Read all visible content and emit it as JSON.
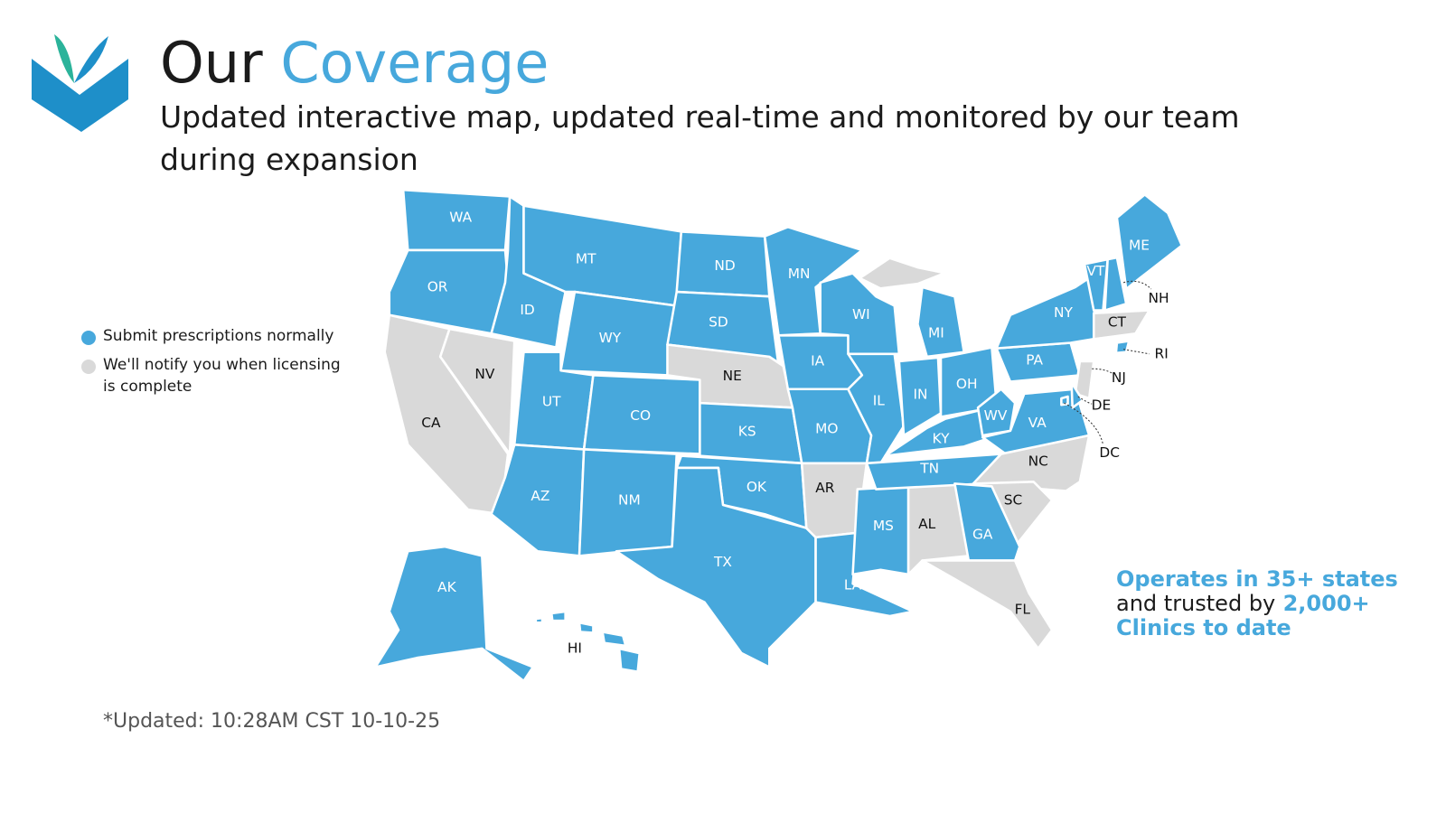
{
  "header": {
    "title_first": "Our",
    "title_second": "Coverage",
    "subtitle": "Updated interactive map, updated real-time and monitored by our team during expansion"
  },
  "legend": [
    {
      "label": "Submit prescriptions normally",
      "color": "#47a8dc"
    },
    {
      "label": "We'll notify you when licensing is complete",
      "color": "#d9d9d9"
    }
  ],
  "states": [
    {
      "label": "WA",
      "legend": 0
    },
    {
      "label": "OR",
      "legend": 0
    },
    {
      "label": "CA",
      "legend": 1
    },
    {
      "label": "NV",
      "legend": 1
    },
    {
      "label": "ID",
      "legend": 0
    },
    {
      "label": "MT",
      "legend": 0
    },
    {
      "label": "WY",
      "legend": 0
    },
    {
      "label": "UT",
      "legend": 0
    },
    {
      "label": "CO",
      "legend": 0
    },
    {
      "label": "AZ",
      "legend": 0
    },
    {
      "label": "NM",
      "legend": 0
    },
    {
      "label": "ND",
      "legend": 0
    },
    {
      "label": "SD",
      "legend": 0
    },
    {
      "label": "NE",
      "legend": 1
    },
    {
      "label": "KS",
      "legend": 0
    },
    {
      "label": "OK",
      "legend": 0
    },
    {
      "label": "TX",
      "legend": 0
    },
    {
      "label": "MN",
      "legend": 0
    },
    {
      "label": "IA",
      "legend": 0
    },
    {
      "label": "MO",
      "legend": 0
    },
    {
      "label": "AR",
      "legend": 1
    },
    {
      "label": "LA",
      "legend": 0
    },
    {
      "label": "WI",
      "legend": 0
    },
    {
      "label": "IL",
      "legend": 0
    },
    {
      "label": "MS",
      "legend": 0
    },
    {
      "label": "AL",
      "legend": 1
    },
    {
      "label": "TN",
      "legend": 0
    },
    {
      "label": "KY",
      "legend": 0
    },
    {
      "label": "IN",
      "legend": 0
    },
    {
      "label": "OH",
      "legend": 0
    },
    {
      "label": "MI",
      "legend": 0
    },
    {
      "label": "WV",
      "legend": 0
    },
    {
      "label": "VA",
      "legend": 0
    },
    {
      "label": "NC",
      "legend": 1
    },
    {
      "label": "SC",
      "legend": 1
    },
    {
      "label": "GA",
      "legend": 0
    },
    {
      "label": "FL",
      "legend": 1
    },
    {
      "label": "PA",
      "legend": 0
    },
    {
      "label": "NY",
      "legend": 0
    },
    {
      "label": "VT",
      "legend": 0
    },
    {
      "label": "NH",
      "legend": 0
    },
    {
      "label": "ME",
      "legend": 0
    },
    {
      "label": "CT",
      "legend": 1
    },
    {
      "label": "RI",
      "legend": 0
    },
    {
      "label": "NJ",
      "legend": 1
    },
    {
      "label": "DE",
      "legend": 0
    },
    {
      "label": "DC",
      "legend": 0
    },
    {
      "label": "AK",
      "legend": 0
    },
    {
      "label": "HI",
      "legend": 0
    }
  ],
  "callout": {
    "line1": "Operates in 35+  states",
    "line2_text": "and trusted by",
    "line2_highlight": "2,000+",
    "line3": "Clinics to date"
  },
  "footnote": "*Updated: 10:28AM CST 10-10-25"
}
